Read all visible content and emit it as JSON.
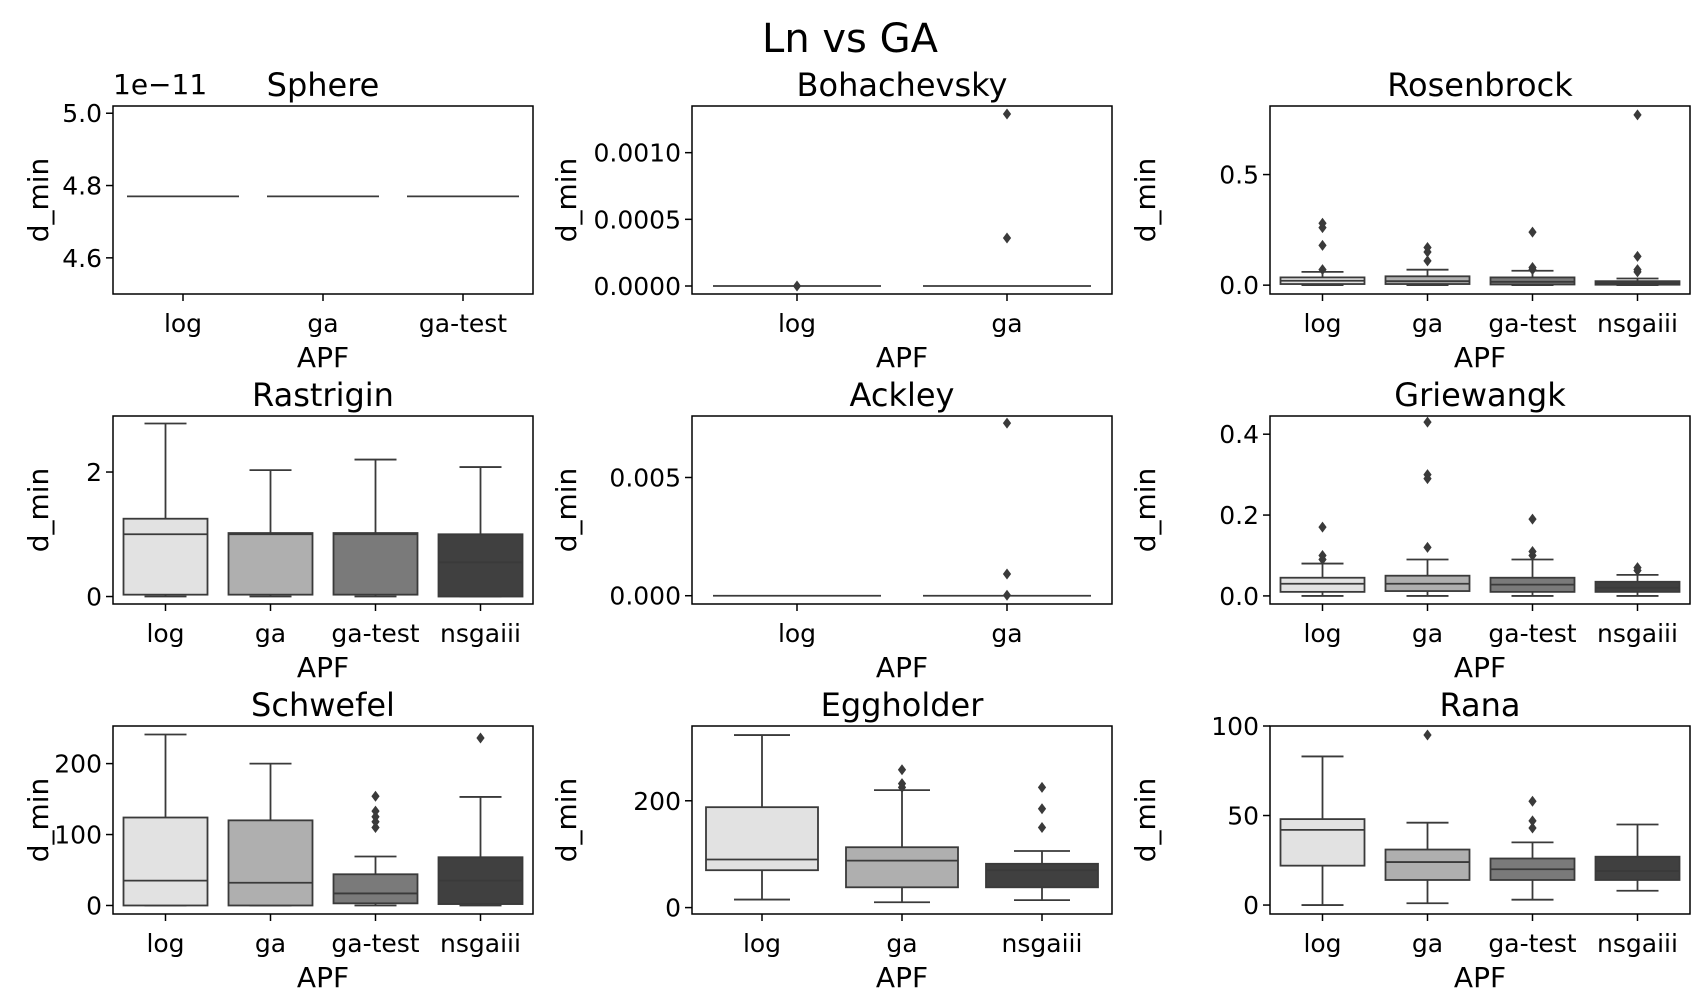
{
  "figure": {
    "title": "Ln vs GA"
  },
  "box_colors": {
    "log": "#e2e2e2",
    "ga": "#afafaf",
    "ga-test": "#7a7a7a",
    "nsgaiii": "#404040"
  },
  "chart_data": [
    {
      "type": "box",
      "title": "Sphere",
      "xlabel": "APF",
      "ylabel": "d_min",
      "scale_note": "1e−11",
      "ylim": [
        4.5,
        5.02
      ],
      "yticks": [
        4.6,
        4.8,
        5.0
      ],
      "ytick_labels": [
        "4.6",
        "4.8",
        "5.0"
      ],
      "categories": [
        "log",
        "ga",
        "ga-test"
      ],
      "boxes": [
        {
          "q1": 4.77,
          "median": 4.77,
          "q3": 4.77,
          "whislo": 4.77,
          "whishi": 4.77,
          "fliers": []
        },
        {
          "q1": 4.77,
          "median": 4.77,
          "q3": 4.77,
          "whislo": 4.77,
          "whishi": 4.77,
          "fliers": []
        },
        {
          "q1": 4.77,
          "median": 4.77,
          "q3": 4.77,
          "whislo": 4.77,
          "whishi": 4.77,
          "fliers": []
        }
      ]
    },
    {
      "type": "box",
      "title": "Bohachevsky",
      "xlabel": "APF",
      "ylabel": "d_min",
      "ylim": [
        -6e-05,
        0.00135
      ],
      "yticks": [
        0,
        0.0005,
        0.001
      ],
      "ytick_labels": [
        "0.0000",
        "0.0005",
        "0.0010"
      ],
      "categories": [
        "log",
        "ga"
      ],
      "boxes": [
        {
          "q1": 0,
          "median": 0,
          "q3": 0,
          "whislo": 0,
          "whishi": 0,
          "fliers": [
            3e-07
          ]
        },
        {
          "q1": 0,
          "median": 0,
          "q3": 0,
          "whislo": 0,
          "whishi": 0,
          "fliers": [
            0.00036,
            0.00129
          ]
        }
      ]
    },
    {
      "type": "box",
      "title": "Rosenbrock",
      "xlabel": "APF",
      "ylabel": "d_min",
      "ylim": [
        -0.04,
        0.81
      ],
      "yticks": [
        0,
        0.5
      ],
      "ytick_labels": [
        "0.0",
        "0.5"
      ],
      "categories": [
        "log",
        "ga",
        "ga-test",
        "nsgaiii"
      ],
      "boxes": [
        {
          "q1": 0.005,
          "median": 0.02,
          "q3": 0.035,
          "whislo": 0,
          "whishi": 0.06,
          "fliers": [
            0.07,
            0.18,
            0.26,
            0.28
          ]
        },
        {
          "q1": 0.005,
          "median": 0.018,
          "q3": 0.04,
          "whislo": 0,
          "whishi": 0.07,
          "fliers": [
            0.11,
            0.15,
            0.17
          ]
        },
        {
          "q1": 0.003,
          "median": 0.015,
          "q3": 0.035,
          "whislo": 0,
          "whishi": 0.065,
          "fliers": [
            0.07,
            0.08,
            0.24
          ]
        },
        {
          "q1": 0.002,
          "median": 0.008,
          "q3": 0.018,
          "whislo": 0,
          "whishi": 0.03,
          "fliers": [
            0.06,
            0.07,
            0.13,
            0.77
          ]
        }
      ]
    },
    {
      "type": "box",
      "title": "Rastrigin",
      "xlabel": "APF",
      "ylabel": "d_min",
      "ylim": [
        -0.12,
        2.9
      ],
      "yticks": [
        0,
        2
      ],
      "ytick_labels": [
        "0",
        "2"
      ],
      "categories": [
        "log",
        "ga",
        "ga-test",
        "nsgaiii"
      ],
      "boxes": [
        {
          "q1": 0.03,
          "median": 1.0,
          "q3": 1.25,
          "whislo": 0,
          "whishi": 2.78,
          "fliers": []
        },
        {
          "q1": 0.03,
          "median": 1.0,
          "q3": 1.02,
          "whislo": 0,
          "whishi": 2.03,
          "fliers": []
        },
        {
          "q1": 0.03,
          "median": 1.0,
          "q3": 1.02,
          "whislo": 0,
          "whishi": 2.2,
          "fliers": []
        },
        {
          "q1": 0.0,
          "median": 0.55,
          "q3": 1.0,
          "whislo": 0,
          "whishi": 2.08,
          "fliers": []
        }
      ]
    },
    {
      "type": "box",
      "title": "Ackley",
      "xlabel": "APF",
      "ylabel": "d_min",
      "ylim": [
        -0.00035,
        0.0076
      ],
      "yticks": [
        0,
        0.005
      ],
      "ytick_labels": [
        "0.000",
        "0.005"
      ],
      "categories": [
        "log",
        "ga"
      ],
      "boxes": [
        {
          "q1": 0,
          "median": 0,
          "q3": 0,
          "whislo": 0,
          "whishi": 0,
          "fliers": []
        },
        {
          "q1": 0,
          "median": 0,
          "q3": 0,
          "whislo": 0,
          "whishi": 0,
          "fliers": [
            2e-05,
            0.00092,
            0.0073
          ]
        }
      ]
    },
    {
      "type": "box",
      "title": "Griewangk",
      "xlabel": "APF",
      "ylabel": "d_min",
      "ylim": [
        -0.02,
        0.445
      ],
      "yticks": [
        0,
        0.2,
        0.4
      ],
      "ytick_labels": [
        "0.0",
        "0.2",
        "0.4"
      ],
      "categories": [
        "log",
        "ga",
        "ga-test",
        "nsgaiii"
      ],
      "boxes": [
        {
          "q1": 0.01,
          "median": 0.03,
          "q3": 0.045,
          "whislo": 0,
          "whishi": 0.08,
          "fliers": [
            0.09,
            0.1,
            0.17
          ]
        },
        {
          "q1": 0.012,
          "median": 0.03,
          "q3": 0.05,
          "whislo": 0,
          "whishi": 0.09,
          "fliers": [
            0.12,
            0.29,
            0.3,
            0.43
          ]
        },
        {
          "q1": 0.01,
          "median": 0.028,
          "q3": 0.045,
          "whislo": 0,
          "whishi": 0.09,
          "fliers": [
            0.1,
            0.11,
            0.19
          ]
        },
        {
          "q1": 0.01,
          "median": 0.02,
          "q3": 0.035,
          "whislo": 0,
          "whishi": 0.052,
          "fliers": [
            0.063,
            0.07
          ]
        }
      ]
    },
    {
      "type": "box",
      "title": "Schwefel",
      "xlabel": "APF",
      "ylabel": "d_min",
      "ylim": [
        -12,
        253
      ],
      "yticks": [
        0,
        100,
        200
      ],
      "ytick_labels": [
        "0",
        "100",
        "200"
      ],
      "categories": [
        "log",
        "ga",
        "ga-test",
        "nsgaiii"
      ],
      "boxes": [
        {
          "q1": 0,
          "median": 35,
          "q3": 124,
          "whislo": 0,
          "whishi": 241,
          "fliers": []
        },
        {
          "q1": 0,
          "median": 32,
          "q3": 120,
          "whislo": 0,
          "whishi": 200,
          "fliers": []
        },
        {
          "q1": 3,
          "median": 17,
          "q3": 44,
          "whislo": 0,
          "whishi": 69,
          "fliers": [
            110,
            118,
            125,
            133,
            154
          ]
        },
        {
          "q1": 2,
          "median": 35,
          "q3": 68,
          "whislo": 0,
          "whishi": 153,
          "fliers": [
            236
          ]
        }
      ]
    },
    {
      "type": "box",
      "title": "Eggholder",
      "xlabel": "APF",
      "ylabel": "d_min",
      "ylim": [
        -12,
        340
      ],
      "yticks": [
        0,
        200
      ],
      "ytick_labels": [
        "0",
        "200"
      ],
      "categories": [
        "log",
        "ga",
        "nsgaiii"
      ],
      "boxes": [
        {
          "q1": 70,
          "median": 90,
          "q3": 188,
          "whislo": 15,
          "whishi": 323,
          "fliers": []
        },
        {
          "q1": 38,
          "median": 88,
          "q3": 113,
          "whislo": 10,
          "whishi": 220,
          "fliers": [
            225,
            232,
            258
          ]
        },
        {
          "q1": 38,
          "median": 70,
          "q3": 82,
          "whislo": 14,
          "whishi": 106,
          "fliers": [
            150,
            185,
            225
          ]
        }
      ]
    },
    {
      "type": "box",
      "title": "Rana",
      "xlabel": "APF",
      "ylabel": "d_min",
      "ylim": [
        -5,
        100
      ],
      "yticks": [
        0,
        50,
        100
      ],
      "ytick_labels": [
        "0",
        "50",
        "100"
      ],
      "categories": [
        "log",
        "ga",
        "ga-test",
        "nsgaiii"
      ],
      "boxes": [
        {
          "q1": 22,
          "median": 42,
          "q3": 48,
          "whislo": 0,
          "whishi": 83,
          "fliers": []
        },
        {
          "q1": 14,
          "median": 24,
          "q3": 31,
          "whislo": 1,
          "whishi": 46,
          "fliers": [
            95
          ]
        },
        {
          "q1": 14,
          "median": 20,
          "q3": 26,
          "whislo": 3,
          "whishi": 35,
          "fliers": [
            43,
            47,
            58
          ]
        },
        {
          "q1": 14,
          "median": 19,
          "q3": 27,
          "whislo": 8,
          "whishi": 45,
          "fliers": []
        }
      ]
    }
  ]
}
